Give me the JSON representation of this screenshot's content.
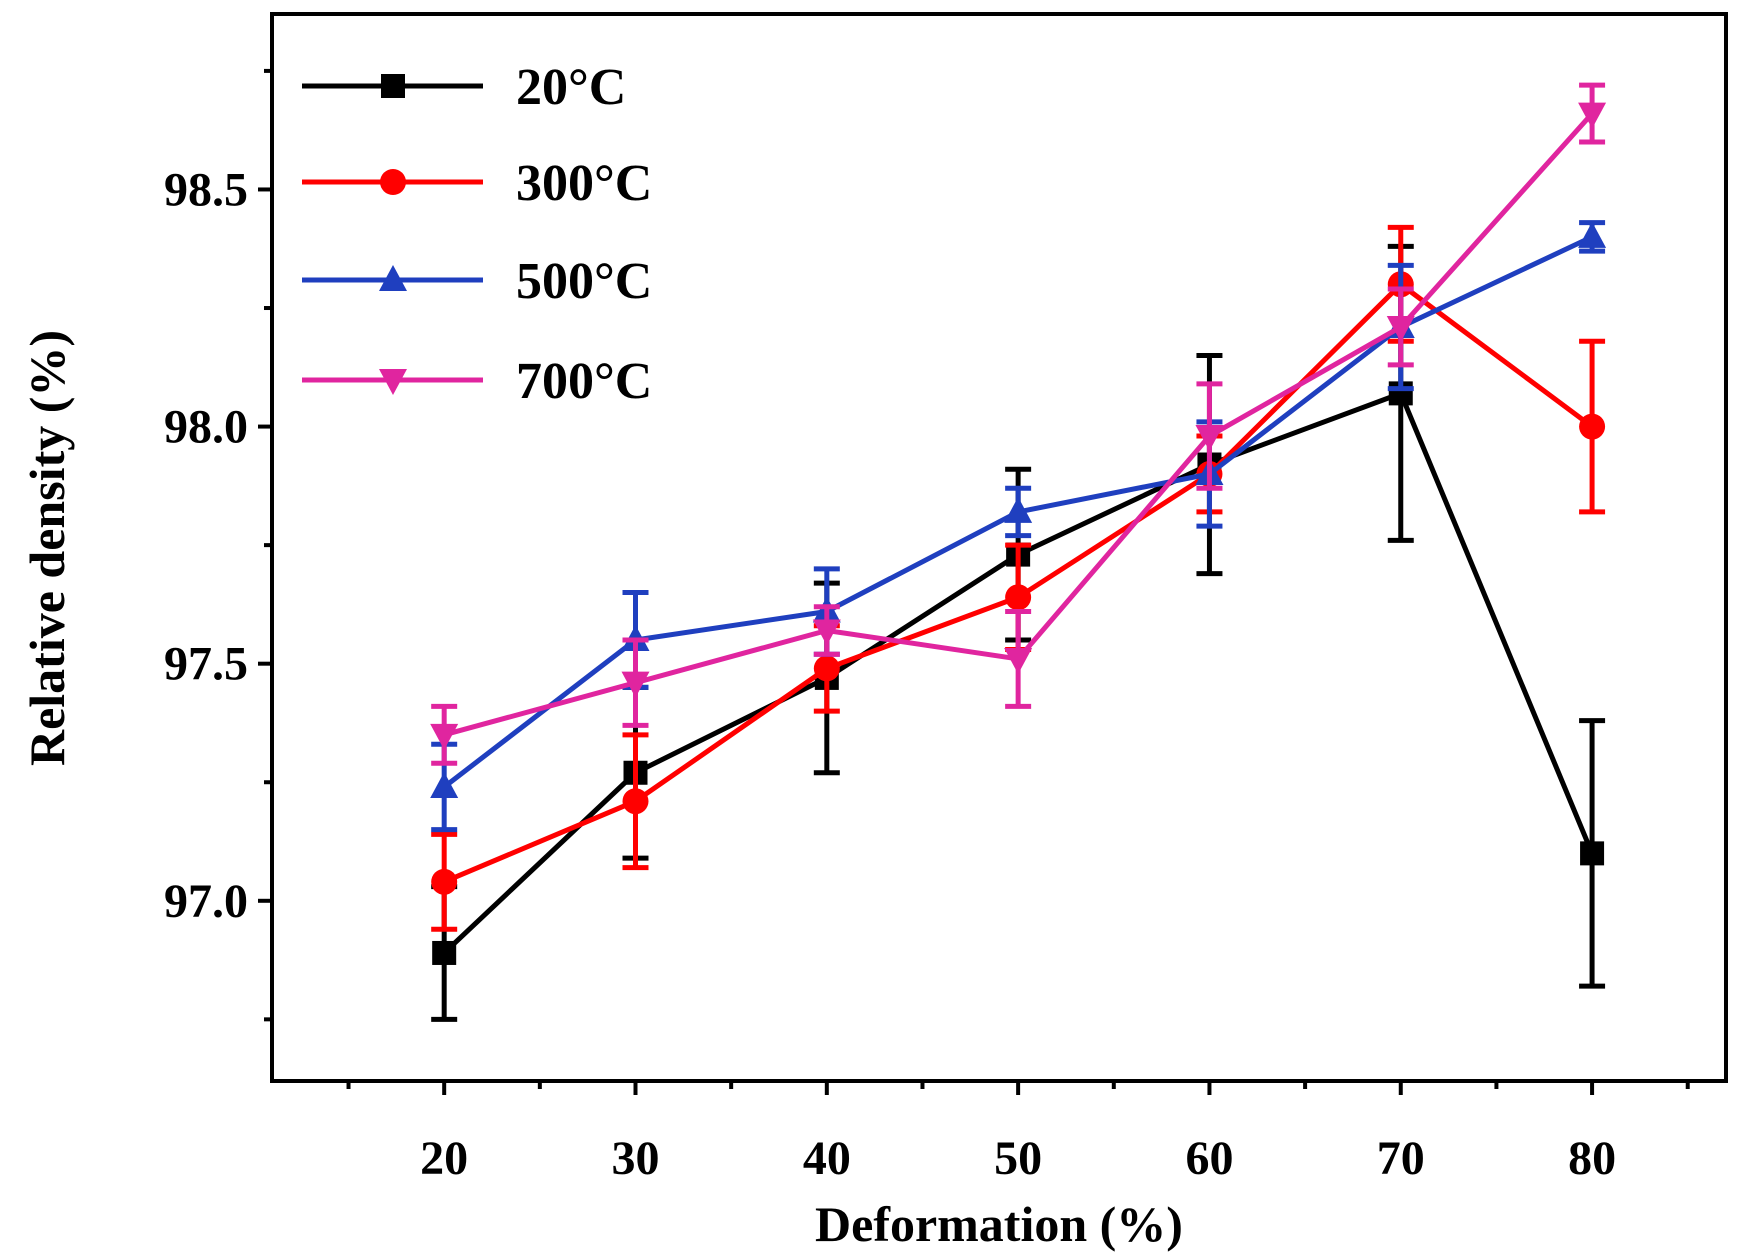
{
  "chart_data": {
    "type": "line",
    "title": "",
    "xlabel": "Deformation (%)",
    "ylabel": "Relative density  (%)",
    "x": [
      20,
      30,
      40,
      50,
      60,
      70,
      80
    ],
    "xlim": [
      11,
      87
    ],
    "ylim": [
      96.62,
      98.87
    ],
    "x_ticks": [
      "20",
      "30",
      "40",
      "50",
      "60",
      "70",
      "80"
    ],
    "y_ticks": [
      "97.0",
      "97.5",
      "98.0",
      "98.5"
    ],
    "grid": false,
    "legend_position": "top-left",
    "series": [
      {
        "name": "20°C",
        "color": "#000000",
        "marker": "square",
        "values": [
          96.89,
          97.27,
          97.47,
          97.73,
          97.92,
          98.07,
          97.1
        ],
        "errors": [
          0.14,
          0.18,
          0.2,
          0.18,
          0.23,
          0.31,
          0.28
        ]
      },
      {
        "name": "300°C",
        "color": "#ff0000",
        "marker": "circle",
        "values": [
          97.04,
          97.21,
          97.49,
          97.64,
          97.9,
          98.3,
          98.0
        ],
        "errors": [
          0.1,
          0.14,
          0.09,
          0.11,
          0.08,
          0.12,
          0.18
        ]
      },
      {
        "name": "500°C",
        "color": "#1f3fbf",
        "marker": "triangle-up",
        "values": [
          97.24,
          97.55,
          97.61,
          97.82,
          97.9,
          98.21,
          98.4
        ],
        "errors": [
          0.09,
          0.1,
          0.09,
          0.05,
          0.11,
          0.13,
          0.03
        ]
      },
      {
        "name": "700°C",
        "color": "#e0259f",
        "marker": "triangle-down",
        "values": [
          97.35,
          97.46,
          97.57,
          97.51,
          97.98,
          98.21,
          98.66
        ],
        "errors": [
          0.06,
          0.09,
          0.05,
          0.1,
          0.11,
          0.08,
          0.06
        ]
      }
    ]
  }
}
